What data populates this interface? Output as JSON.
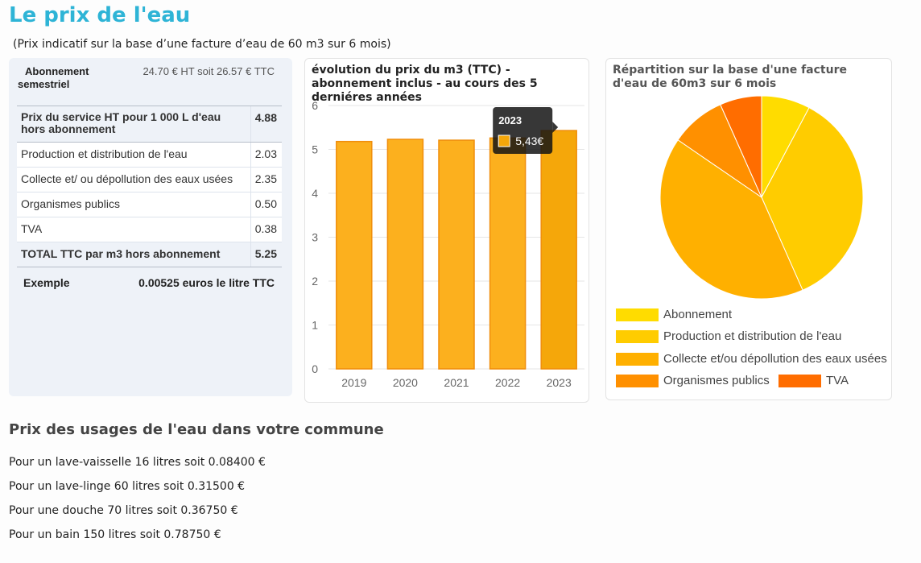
{
  "header": {
    "title": "Le prix de l'eau",
    "subtitle": "(Prix indicatif sur la base d’une facture d’eau de 60 m3 sur 6 mois)"
  },
  "price_table": {
    "abonnement_label_1": "Abonnement",
    "abonnement_label_2": "semestriel",
    "abonnement_value": "24.70 € HT soit 26.57 € TTC",
    "rows": [
      {
        "label": "Prix du service HT pour 1 000 L d'eau hors abonnement",
        "value": "4.88"
      },
      {
        "label": "Production et distribution de l'eau",
        "value": "2.03"
      },
      {
        "label": "Collecte et/ ou dépollution des eaux usées",
        "value": "2.35"
      },
      {
        "label": "Organismes publics",
        "value": "0.50"
      },
      {
        "label": "TVA",
        "value": "0.38"
      },
      {
        "label": "TOTAL TTC par m3 hors abonnement",
        "value": "5.25"
      }
    ],
    "example_label": "Exemple",
    "example_value": "0.00525 euros le litre TTC"
  },
  "chart_data": [
    {
      "type": "bar",
      "title": "évolution du prix du m3 (TTC) - abonnement inclus - au cours des 5 derniéres années",
      "categories": [
        "2019",
        "2020",
        "2021",
        "2022",
        "2023"
      ],
      "values": [
        5.18,
        5.23,
        5.21,
        5.26,
        5.43
      ],
      "ylim": [
        0,
        6
      ],
      "yticks": [
        "0",
        "1",
        "2",
        "3",
        "4",
        "5",
        "6"
      ],
      "grid": true,
      "tooltip": {
        "title": "2023",
        "value": "5,43€"
      },
      "colors": {
        "bar": "#fcb01e",
        "bar_border": "#f08e0c",
        "highlight": "#f5a70a"
      }
    },
    {
      "type": "pie",
      "title": "Répartition sur la base d'une facture d'eau de 60m3 sur 6 mois",
      "labels": [
        "Abonnement",
        "Production et distribution de l'eau",
        "Collecte et/ou dépollution des eaux usées",
        "Organismes publics",
        "TVA"
      ],
      "values": [
        26.57,
        121.8,
        141.0,
        30.0,
        22.8
      ],
      "colors": [
        "#ffdc00",
        "#ffcc00",
        "#ffb000",
        "#ff9000",
        "#ff6d00"
      ],
      "legend": "bottom"
    }
  ],
  "usages": {
    "title": "Prix des usages de l'eau dans votre commune",
    "items": [
      "Pour un lave-vaisselle 16 litres soit 0.08400 €",
      "Pour un lave-linge 60 litres soit 0.31500 €",
      "Pour une douche 70 litres soit 0.36750 €",
      "Pour un bain 150 litres soit 0.78750 €"
    ]
  }
}
